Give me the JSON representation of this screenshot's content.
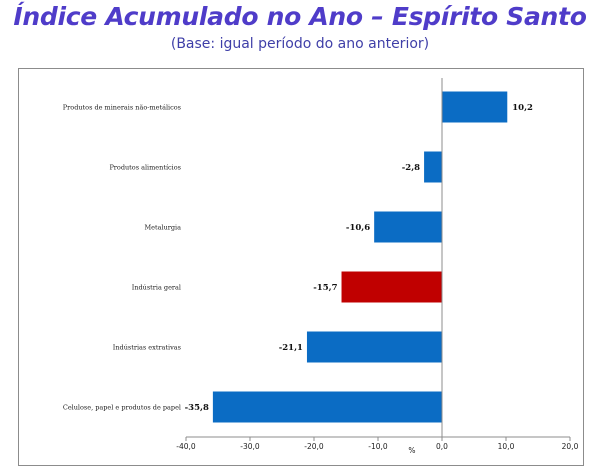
{
  "header": {
    "title": "Índice Acumulado no Ano – Espírito Santo",
    "subtitle": "(Base: igual período do ano anterior)"
  },
  "colors": {
    "title": "#4f3cc9",
    "subtitle": "#3f3fa8",
    "bar_default": "#0b6cc4",
    "bar_highlight": "#c00000"
  },
  "chart_data": {
    "type": "bar",
    "orientation": "horizontal",
    "categories": [
      "Produtos de minerais não-metálicos",
      "Produtos alimentícios",
      "Metalurgia",
      "Indústria geral",
      "Indústrias extrativas",
      "Celulose, papel e produtos de papel"
    ],
    "values": [
      10.2,
      -2.8,
      -10.6,
      -15.7,
      -21.1,
      -35.8
    ],
    "value_labels": [
      "10,2",
      "-2,8",
      "-10,6",
      "-15,7",
      "-21,1",
      "-35,8"
    ],
    "highlight": [
      false,
      false,
      false,
      true,
      false,
      false
    ],
    "xlim": [
      -40,
      20
    ],
    "xticks": [
      -40,
      -30,
      -20,
      -10,
      0,
      10,
      20
    ],
    "xtick_labels": [
      "-40,0",
      "-30,0",
      "-20,0",
      "-10,0",
      "0,0",
      "10,0",
      "20,0"
    ],
    "xlabel": "%",
    "ylabel": "",
    "grid": false,
    "legend": "none"
  }
}
